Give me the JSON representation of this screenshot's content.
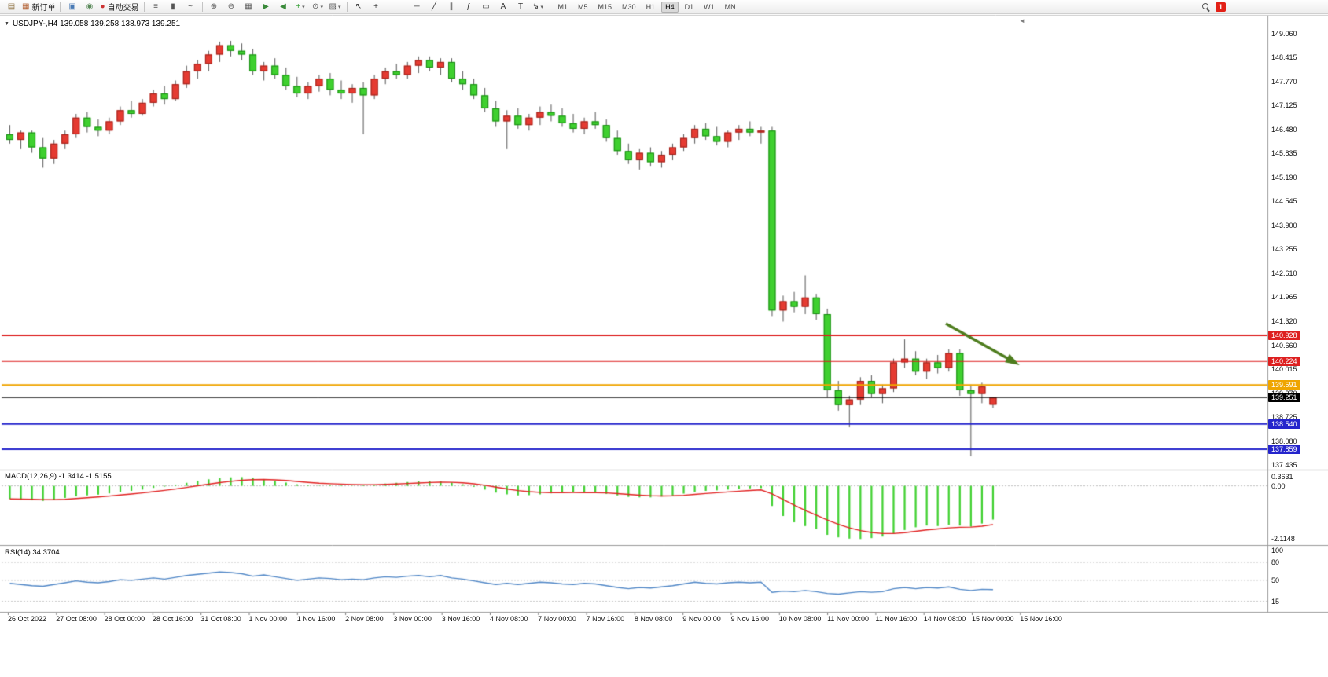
{
  "toolbar": {
    "items": [
      {
        "t": "icon",
        "name": "new-chart-icon",
        "g": "▤",
        "c": "#8a6d3b"
      },
      {
        "t": "btn",
        "name": "new-order-button",
        "icon": "order-ticket-icon",
        "g": "▦",
        "c": "#b05a2a",
        "label": "新订单"
      },
      {
        "t": "sep"
      },
      {
        "t": "icon",
        "name": "charts-profile-icon",
        "g": "▣",
        "c": "#4a7ab5"
      },
      {
        "t": "icon",
        "name": "signals-icon",
        "g": "◉",
        "c": "#5a8a5a"
      },
      {
        "t": "btn",
        "name": "autotrade-button",
        "icon": "autotrade-status-icon",
        "g": "●",
        "c": "#cc3333",
        "label": "自动交易"
      },
      {
        "t": "sep"
      },
      {
        "t": "icon",
        "name": "bar-chart-icon",
        "g": "≡",
        "c": "#555555"
      },
      {
        "t": "icon",
        "name": "candlestick-chart-icon",
        "g": "▮",
        "c": "#555555"
      },
      {
        "t": "icon",
        "name": "line-chart-icon",
        "g": "~",
        "c": "#555555"
      },
      {
        "t": "sep"
      },
      {
        "t": "icon",
        "name": "zoom-in-icon",
        "g": "⊕",
        "c": "#555555"
      },
      {
        "t": "icon",
        "name": "zoom-out-icon",
        "g": "⊖",
        "c": "#555555"
      },
      {
        "t": "icon",
        "name": "tile-windows-icon",
        "g": "▦",
        "c": "#555555"
      },
      {
        "t": "icon",
        "name": "auto-scroll-icon",
        "g": "▶",
        "c": "#3a8a3a"
      },
      {
        "t": "icon",
        "name": "chart-shift-icon",
        "g": "◀",
        "c": "#3a8a3a"
      },
      {
        "t": "icon",
        "name": "add-indicator-icon",
        "g": "+",
        "c": "#2a9b2a",
        "dd": true
      },
      {
        "t": "icon",
        "name": "period-icon",
        "g": "⊙",
        "c": "#555555",
        "dd": true
      },
      {
        "t": "icon",
        "name": "template-icon",
        "g": "▨",
        "c": "#555555",
        "dd": true
      },
      {
        "t": "sep"
      },
      {
        "t": "icon",
        "name": "cursor-icon",
        "g": "↖",
        "c": "#333333"
      },
      {
        "t": "icon",
        "name": "crosshair-icon",
        "g": "+",
        "c": "#333333"
      },
      {
        "t": "sep"
      },
      {
        "t": "icon",
        "name": "vertical-line-icon",
        "g": "│",
        "c": "#333333"
      },
      {
        "t": "icon",
        "name": "horizontal-line-icon",
        "g": "─",
        "c": "#333333"
      },
      {
        "t": "icon",
        "name": "trendline-icon",
        "g": "╱",
        "c": "#333333"
      },
      {
        "t": "icon",
        "name": "equidistant-channel-icon",
        "g": "∥",
        "c": "#333333"
      },
      {
        "t": "icon",
        "name": "fibonacci-icon",
        "g": "ƒ",
        "c": "#333333"
      },
      {
        "t": "icon",
        "name": "shapes-icon",
        "g": "▭",
        "c": "#333333"
      },
      {
        "t": "icon",
        "name": "text-icon",
        "g": "A",
        "c": "#333333"
      },
      {
        "t": "icon",
        "name": "text-label-icon",
        "g": "T",
        "c": "#333333"
      },
      {
        "t": "icon",
        "name": "arrows-icon",
        "g": "⇘",
        "c": "#333333",
        "dd": true
      },
      {
        "t": "sep"
      },
      {
        "t": "tfs"
      },
      {
        "t": "spring"
      },
      {
        "t": "mag"
      },
      {
        "t": "badge",
        "name": "notification-badge",
        "label": "1"
      }
    ],
    "timeframes": [
      "M1",
      "M5",
      "M15",
      "M30",
      "H1",
      "H4",
      "D1",
      "W1",
      "MN"
    ],
    "active_timeframe": "H4"
  },
  "chart": {
    "symbol_line": "USDJPY-,H4 139.058 139.258 138.973 139.251",
    "collapse_glyph": "▼",
    "shift_marker_glyph": "◄",
    "current_price_label": "139.251"
  },
  "panes": {
    "macd_label": "MACD(12,26,9) -1.3414 -1.5155",
    "rsi_label": "RSI(14) 34.3704"
  },
  "chart_data": [
    {
      "type": "candlestick",
      "title": "USDJPY- H4",
      "up_color": "#e53b32",
      "down_color": "#3fd02f",
      "ylim": [
        137.27,
        149.5
      ],
      "y_ticks": [
        "149.060",
        "148.415",
        "147.770",
        "147.125",
        "146.480",
        "145.835",
        "145.190",
        "144.545",
        "143.900",
        "143.255",
        "142.610",
        "141.965",
        "141.320",
        "140.660",
        "140.015",
        "139.370",
        "138.725",
        "138.080",
        "137.435"
      ],
      "x_labels": [
        "26 Oct 2022",
        "27 Oct 08:00",
        "28 Oct 00:00",
        "28 Oct 16:00",
        "31 Oct 08:00",
        "1 Nov 00:00",
        "1 Nov 16:00",
        "2 Nov 08:00",
        "3 Nov 00:00",
        "3 Nov 16:00",
        "4 Nov 08:00",
        "7 Nov 00:00",
        "7 Nov 16:00",
        "8 Nov 08:00",
        "9 Nov 00:00",
        "9 Nov 16:00",
        "10 Nov 08:00",
        "11 Nov 00:00",
        "11 Nov 16:00",
        "14 Nov 08:00",
        "15 Nov 00:00",
        "15 Nov 16:00"
      ],
      "ohlc": [
        [
          146.35,
          146.6,
          146.1,
          146.2
        ],
        [
          146.2,
          146.45,
          145.95,
          146.4
        ],
        [
          146.4,
          146.45,
          145.85,
          146.0
        ],
        [
          146.0,
          146.25,
          145.45,
          145.7
        ],
        [
          145.7,
          146.2,
          145.55,
          146.1
        ],
        [
          146.1,
          146.45,
          145.95,
          146.35
        ],
        [
          146.35,
          146.9,
          146.25,
          146.8
        ],
        [
          146.8,
          146.95,
          146.4,
          146.55
        ],
        [
          146.55,
          146.75,
          146.3,
          146.45
        ],
        [
          146.45,
          146.8,
          146.35,
          146.7
        ],
        [
          146.7,
          147.1,
          146.6,
          147.0
        ],
        [
          147.0,
          147.25,
          146.8,
          146.9
        ],
        [
          146.9,
          147.3,
          146.85,
          147.2
        ],
        [
          147.2,
          147.55,
          147.1,
          147.45
        ],
        [
          147.45,
          147.65,
          147.15,
          147.3
        ],
        [
          147.3,
          147.8,
          147.25,
          147.7
        ],
        [
          147.7,
          148.2,
          147.6,
          148.05
        ],
        [
          148.05,
          148.35,
          147.85,
          148.25
        ],
        [
          148.25,
          148.6,
          148.05,
          148.5
        ],
        [
          148.5,
          148.85,
          148.3,
          148.75
        ],
        [
          148.75,
          148.87,
          148.45,
          148.6
        ],
        [
          148.6,
          148.8,
          148.35,
          148.5
        ],
        [
          148.5,
          148.65,
          147.95,
          148.05
        ],
        [
          148.05,
          148.3,
          147.8,
          148.2
        ],
        [
          148.2,
          148.4,
          147.85,
          147.95
        ],
        [
          147.95,
          148.15,
          147.55,
          147.65
        ],
        [
          147.65,
          147.9,
          147.35,
          147.45
        ],
        [
          147.45,
          147.75,
          147.3,
          147.65
        ],
        [
          147.65,
          147.95,
          147.5,
          147.85
        ],
        [
          147.85,
          148.0,
          147.4,
          147.55
        ],
        [
          147.55,
          147.8,
          147.3,
          147.45
        ],
        [
          147.45,
          147.7,
          147.2,
          147.6
        ],
        [
          147.6,
          147.75,
          146.35,
          147.4
        ],
        [
          147.4,
          147.95,
          147.3,
          147.85
        ],
        [
          147.85,
          148.15,
          147.7,
          148.05
        ],
        [
          148.05,
          148.25,
          147.85,
          147.95
        ],
        [
          147.95,
          148.3,
          147.85,
          148.2
        ],
        [
          148.2,
          148.45,
          148.0,
          148.35
        ],
        [
          148.35,
          148.45,
          148.05,
          148.15
        ],
        [
          148.15,
          148.4,
          147.95,
          148.3
        ],
        [
          148.3,
          148.4,
          147.75,
          147.85
        ],
        [
          147.85,
          148.05,
          147.55,
          147.7
        ],
        [
          147.7,
          147.85,
          147.3,
          147.4
        ],
        [
          147.4,
          147.6,
          146.95,
          147.05
        ],
        [
          147.05,
          147.25,
          146.55,
          146.7
        ],
        [
          146.7,
          147.0,
          145.95,
          146.85
        ],
        [
          146.85,
          147.05,
          146.5,
          146.6
        ],
        [
          146.6,
          146.9,
          146.45,
          146.8
        ],
        [
          146.8,
          147.1,
          146.6,
          146.95
        ],
        [
          146.95,
          147.15,
          146.7,
          146.85
        ],
        [
          146.85,
          147.05,
          146.55,
          146.65
        ],
        [
          146.65,
          146.9,
          146.4,
          146.5
        ],
        [
          146.5,
          146.8,
          146.35,
          146.7
        ],
        [
          146.7,
          146.95,
          146.5,
          146.6
        ],
        [
          146.6,
          146.75,
          146.15,
          146.25
        ],
        [
          146.25,
          146.45,
          145.8,
          145.9
        ],
        [
          145.9,
          146.1,
          145.55,
          145.65
        ],
        [
          145.65,
          145.95,
          145.4,
          145.85
        ],
        [
          145.85,
          146.0,
          145.5,
          145.6
        ],
        [
          145.6,
          145.9,
          145.45,
          145.8
        ],
        [
          145.8,
          146.1,
          145.65,
          146.0
        ],
        [
          146.0,
          146.35,
          145.9,
          146.25
        ],
        [
          146.25,
          146.6,
          146.1,
          146.5
        ],
        [
          146.5,
          146.65,
          146.2,
          146.3
        ],
        [
          146.3,
          146.55,
          146.05,
          146.15
        ],
        [
          146.15,
          146.45,
          146.0,
          146.4
        ],
        [
          146.4,
          146.6,
          146.2,
          146.5
        ],
        [
          146.5,
          146.7,
          146.3,
          146.4
        ],
        [
          146.4,
          146.55,
          146.1,
          146.45
        ],
        [
          146.45,
          146.55,
          141.45,
          141.6
        ],
        [
          141.6,
          142.0,
          141.3,
          141.85
        ],
        [
          141.85,
          142.1,
          141.55,
          141.7
        ],
        [
          141.7,
          142.55,
          141.5,
          141.95
        ],
        [
          141.95,
          142.05,
          141.35,
          141.5
        ],
        [
          141.5,
          141.65,
          139.25,
          139.45
        ],
        [
          139.45,
          139.7,
          138.9,
          139.05
        ],
        [
          139.05,
          139.3,
          138.45,
          139.2
        ],
        [
          139.2,
          139.8,
          139.05,
          139.7
        ],
        [
          139.7,
          139.85,
          139.25,
          139.35
        ],
        [
          139.35,
          139.6,
          139.1,
          139.5
        ],
        [
          139.5,
          140.3,
          139.4,
          140.2
        ],
        [
          140.2,
          140.82,
          140.05,
          140.3
        ],
        [
          140.3,
          140.5,
          139.85,
          139.95
        ],
        [
          139.95,
          140.3,
          139.75,
          140.2
        ],
        [
          140.2,
          140.4,
          139.9,
          140.05
        ],
        [
          140.05,
          140.55,
          139.95,
          140.45
        ],
        [
          140.45,
          140.55,
          139.3,
          139.45
        ],
        [
          139.45,
          139.6,
          137.67,
          139.35
        ],
        [
          139.35,
          139.65,
          139.1,
          139.55
        ],
        [
          139.058,
          139.258,
          138.973,
          139.251
        ]
      ],
      "hlines": [
        {
          "price": 140.928,
          "label": "140.928",
          "color": "#dd1f1f",
          "width": 2
        },
        {
          "price": 140.224,
          "label": "140.224",
          "color": "#dd1f1f",
          "width": 1
        },
        {
          "price": 139.591,
          "label": "139.591",
          "color": "#efa500",
          "width": 2
        },
        {
          "price": 138.54,
          "label": "138.540",
          "color": "#2424cc",
          "width": 2
        },
        {
          "price": 137.859,
          "label": "137.859",
          "color": "#2424cc",
          "width": 2
        }
      ],
      "current_price": {
        "price": 139.251,
        "label": "139.251",
        "color": "#000000"
      },
      "annotations": [
        {
          "type": "arrow",
          "color": "#4e7d1e",
          "from": [
            1203,
            412
          ],
          "to": [
            1288,
            460
          ]
        }
      ]
    },
    {
      "type": "bar",
      "title": "MACD(12,26,9)",
      "bar_color": "#3fd02f",
      "signal_color": "#e02020",
      "last_values": {
        "macd": -1.3414,
        "signal": -1.5155
      },
      "ylim": [
        -2.35,
        0.55
      ],
      "y_ticks": [
        "0.3631",
        "0.00",
        "-2.1148"
      ],
      "values": [
        -0.52,
        -0.55,
        -0.57,
        -0.6,
        -0.55,
        -0.48,
        -0.42,
        -0.38,
        -0.35,
        -0.3,
        -0.24,
        -0.2,
        -0.15,
        -0.08,
        -0.03,
        0.04,
        0.12,
        0.2,
        0.26,
        0.31,
        0.34,
        0.35,
        0.32,
        0.27,
        0.2,
        0.13,
        0.06,
        0.02,
        0.01,
        0.03,
        0.02,
        0.01,
        0.02,
        0.05,
        0.09,
        0.12,
        0.15,
        0.18,
        0.19,
        0.18,
        0.13,
        0.06,
        -0.04,
        -0.15,
        -0.27,
        -0.34,
        -0.38,
        -0.37,
        -0.34,
        -0.3,
        -0.27,
        -0.26,
        -0.27,
        -0.28,
        -0.32,
        -0.38,
        -0.44,
        -0.46,
        -0.46,
        -0.43,
        -0.38,
        -0.31,
        -0.24,
        -0.2,
        -0.18,
        -0.15,
        -0.12,
        -0.1,
        -0.09,
        -0.8,
        -1.2,
        -1.45,
        -1.6,
        -1.72,
        -1.95,
        -2.05,
        -2.1,
        -2.1148,
        -2.08,
        -2.02,
        -1.9,
        -1.76,
        -1.65,
        -1.58,
        -1.6,
        -1.55,
        -1.58,
        -1.62,
        -1.5,
        -1.3414
      ]
    },
    {
      "type": "line",
      "title": "RSI(14)",
      "line_color": "#4f86c6",
      "ylim": [
        0,
        105
      ],
      "levels": [
        80,
        50,
        15
      ],
      "y_ticks": [
        "100",
        "80",
        "50",
        "15"
      ],
      "values": [
        45,
        43,
        41,
        40,
        43,
        46,
        49,
        47,
        46,
        48,
        51,
        50,
        52,
        54,
        52,
        55,
        58,
        60,
        62,
        64,
        63,
        61,
        57,
        59,
        56,
        53,
        50,
        52,
        54,
        53,
        51,
        52,
        51,
        54,
        56,
        55,
        57,
        58,
        56,
        58,
        54,
        52,
        49,
        46,
        43,
        45,
        43,
        45,
        47,
        46,
        44,
        43,
        45,
        44,
        41,
        38,
        36,
        38,
        37,
        39,
        41,
        44,
        47,
        45,
        44,
        46,
        47,
        46,
        47,
        30,
        32,
        31,
        33,
        31,
        28,
        27,
        29,
        31,
        30,
        31,
        36,
        38,
        36,
        38,
        37,
        39,
        35,
        33,
        35,
        34.3704
      ]
    }
  ]
}
